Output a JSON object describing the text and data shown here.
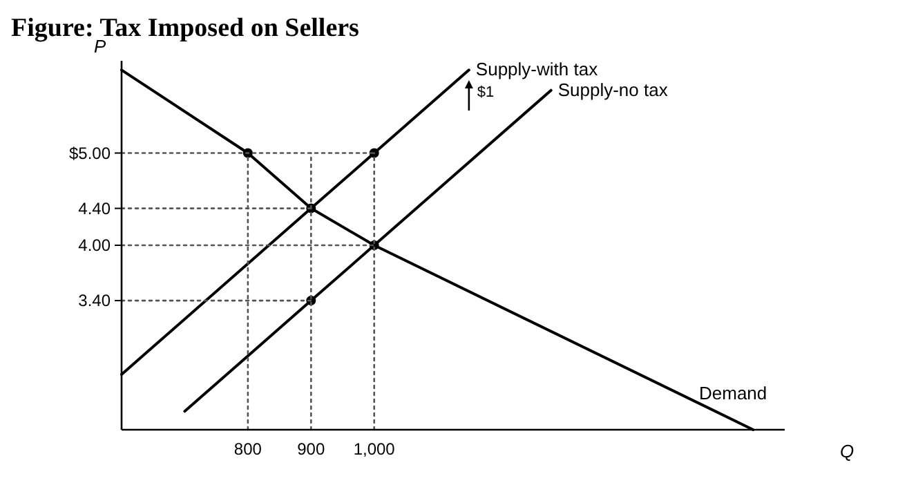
{
  "chart_data": {
    "type": "line",
    "title": "Figure: Tax Imposed on Sellers",
    "xlabel": "Q",
    "ylabel": "P",
    "xlim": [
      600,
      1650
    ],
    "ylim": [
      2,
      6
    ],
    "xticks": [
      800,
      900,
      {
        "value": 1000,
        "label": "1,000"
      }
    ],
    "yticks": [
      {
        "value": 3.4,
        "label": "3.40"
      },
      {
        "value": 4,
        "label": "4.00"
      },
      {
        "value": 4.4,
        "label": "4.40"
      },
      {
        "value": 5,
        "label": "$5.00"
      }
    ],
    "grid": false,
    "marker": "none",
    "line_style": "solid",
    "series": [
      {
        "name": "Supply-with tax",
        "color": "#000000",
        "x": [
          600,
          900,
          1000,
          1150
        ],
        "values": [
          2.6,
          4.4,
          5.0,
          5.9
        ]
      },
      {
        "name": "Supply-no tax",
        "color": "#000000",
        "x": [
          700,
          900,
          1000,
          1280
        ],
        "values": [
          2.2,
          3.4,
          4.0,
          5.68
        ]
      },
      {
        "name": "Demand",
        "color": "#000000",
        "x": [
          600,
          800,
          900,
          1000,
          1600
        ],
        "values": [
          5.9,
          5.0,
          4.4,
          4.0,
          2.0
        ]
      },
      {
        "type": "scatter",
        "marker": "circle",
        "color": "#000000",
        "x": [
          800,
          900,
          1000,
          900,
          1000
        ],
        "values": [
          5.0,
          4.4,
          4.0,
          3.4,
          5.0
        ]
      },
      {
        "line_style": "dotted",
        "color": "#555555",
        "x": [
          600,
          1000
        ],
        "values": [
          5.0,
          5.0
        ]
      },
      {
        "line_style": "dotted",
        "color": "#555555",
        "x": [
          600,
          900
        ],
        "values": [
          4.4,
          4.4
        ]
      },
      {
        "line_style": "dotted",
        "color": "#555555",
        "x": [
          600,
          1000
        ],
        "values": [
          4.0,
          4.0
        ]
      },
      {
        "line_style": "dotted",
        "color": "#555555",
        "x": [
          600,
          900
        ],
        "values": [
          3.4,
          3.4
        ]
      },
      {
        "line_style": "dotted",
        "color": "#555555",
        "x": [
          800,
          800
        ],
        "values": [
          2,
          5.0
        ]
      },
      {
        "line_style": "dotted",
        "color": "#555555",
        "x": [
          900,
          900
        ],
        "values": [
          2,
          5.0
        ]
      },
      {
        "line_style": "dotted",
        "color": "#555555",
        "x": [
          1000,
          1000
        ],
        "values": [
          2,
          5.0
        ]
      }
    ],
    "annotations": [
      "$1"
    ]
  }
}
